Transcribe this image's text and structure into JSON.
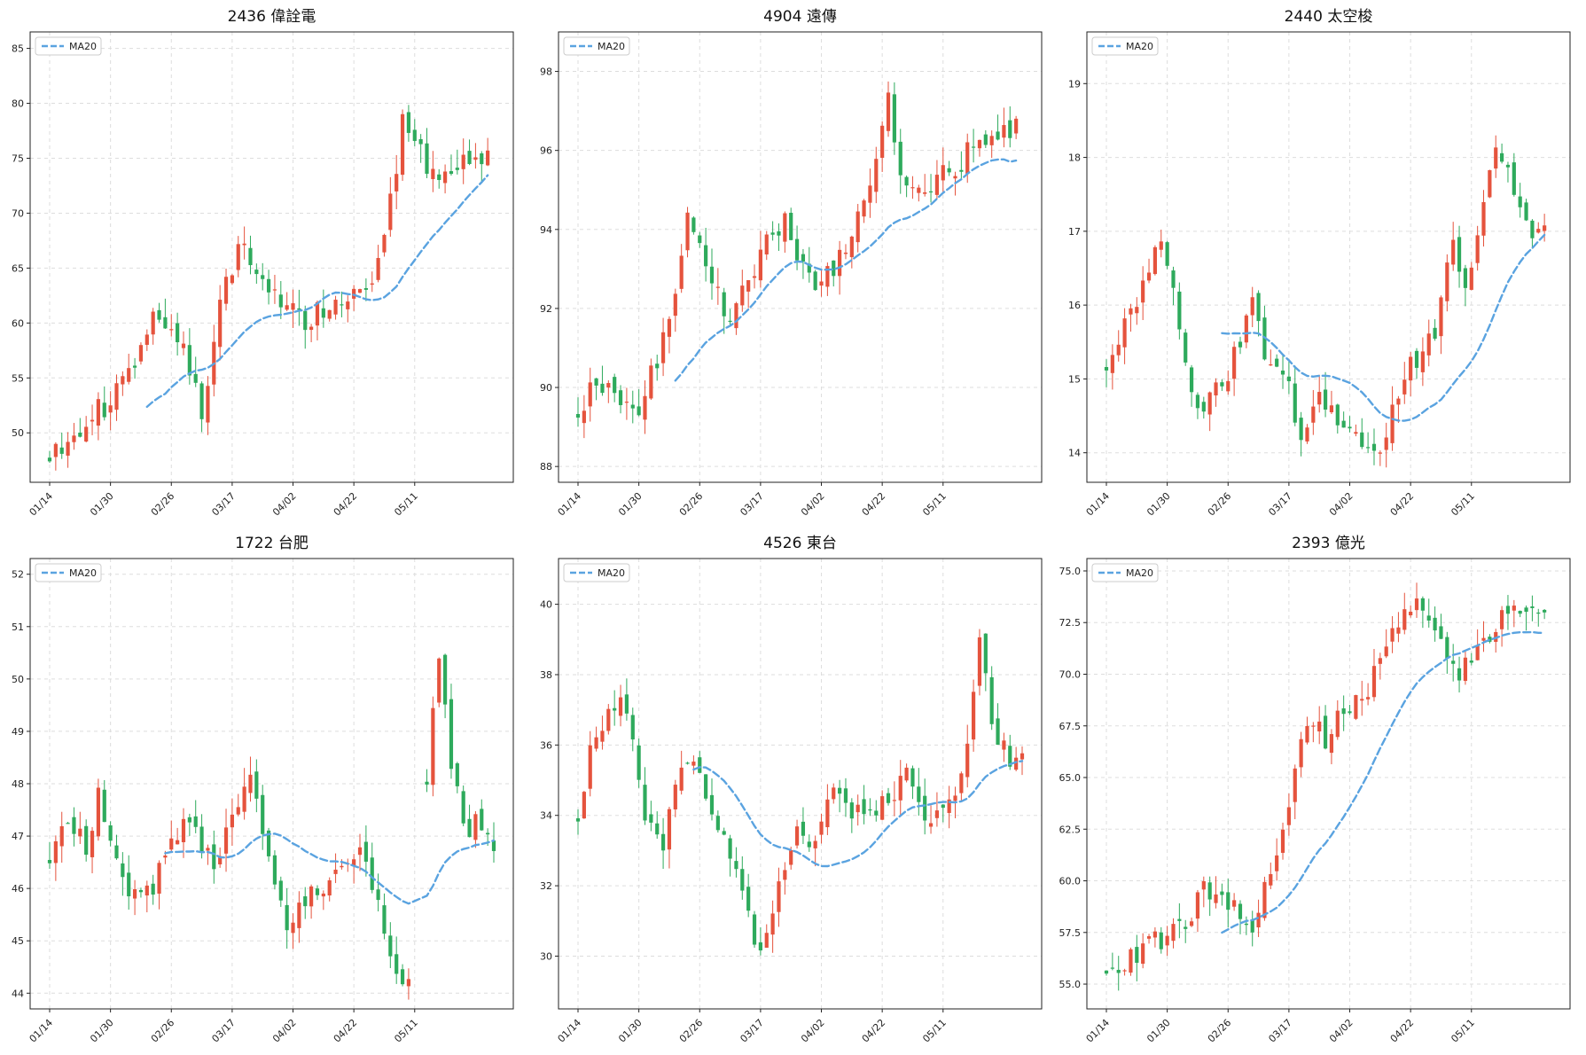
{
  "colors": {
    "up": "#e5533d",
    "down": "#2eaa5c",
    "ma": "#5aa3e0",
    "grid": "#dddddd"
  },
  "x_tick_labels": [
    "01/14",
    "01/30",
    "02/26",
    "03/17",
    "04/02",
    "04/22",
    "05/11"
  ],
  "chart_data": [
    {
      "type": "candlestick",
      "title": "2436 偉詮電",
      "legend": {
        "label": "MA20",
        "position": "top-left"
      },
      "grid": true,
      "ylim": [
        45.5,
        86.5
      ],
      "yticks": [
        50,
        55,
        60,
        65,
        70,
        75,
        80,
        85
      ],
      "ytick_labels": [
        "50",
        "55",
        "60",
        "65",
        "70",
        "75",
        "80",
        "85"
      ],
      "kp": [
        [
          0,
          48
        ],
        [
          6,
          51
        ],
        [
          10,
          53
        ],
        [
          14,
          57
        ],
        [
          16,
          60
        ],
        [
          18,
          61
        ],
        [
          20,
          60
        ],
        [
          23,
          56
        ],
        [
          25,
          51
        ],
        [
          28,
          62
        ],
        [
          31,
          67
        ],
        [
          35,
          64
        ],
        [
          38,
          62
        ],
        [
          42,
          60
        ],
        [
          46,
          62
        ],
        [
          50,
          62
        ],
        [
          53,
          63
        ],
        [
          55,
          68
        ],
        [
          58,
          78
        ],
        [
          61,
          76
        ],
        [
          64,
          72
        ],
        [
          67,
          74
        ],
        [
          70,
          75
        ],
        [
          72,
          75
        ]
      ],
      "ma_start": 16,
      "seed": 11
    },
    {
      "type": "candlestick",
      "title": "4904 遠傳",
      "legend": {
        "label": "MA20",
        "position": "top-left"
      },
      "grid": true,
      "ylim": [
        87.6,
        99.0
      ],
      "yticks": [
        88,
        90,
        92,
        94,
        96,
        98
      ],
      "ytick_labels": [
        "88",
        "90",
        "92",
        "94",
        "96",
        "98"
      ],
      "kp": [
        [
          0,
          89.4
        ],
        [
          3,
          90.3
        ],
        [
          6,
          89.8
        ],
        [
          10,
          89.4
        ],
        [
          13,
          90.8
        ],
        [
          16,
          92.3
        ],
        [
          18,
          94.7
        ],
        [
          21,
          93
        ],
        [
          25,
          91.5
        ],
        [
          30,
          93.5
        ],
        [
          34,
          94.2
        ],
        [
          38,
          92.6
        ],
        [
          42,
          93
        ],
        [
          46,
          94.4
        ],
        [
          48,
          95
        ],
        [
          51,
          97.5
        ],
        [
          53,
          95.5
        ],
        [
          57,
          95.2
        ],
        [
          62,
          95.6
        ],
        [
          66,
          96.2
        ],
        [
          72,
          96.5
        ]
      ],
      "ma_start": 16,
      "seed": 22
    },
    {
      "type": "candlestick",
      "title": "2440 太空梭",
      "legend": {
        "label": "MA20",
        "position": "top-left"
      },
      "grid": true,
      "ylim": [
        13.6,
        19.7
      ],
      "yticks": [
        14,
        15,
        16,
        17,
        18,
        19
      ],
      "ytick_labels": [
        "14",
        "15",
        "16",
        "17",
        "18",
        "19"
      ],
      "kp": [
        [
          0,
          15.2
        ],
        [
          3,
          15.7
        ],
        [
          6,
          16.2
        ],
        [
          8,
          16.9
        ],
        [
          11,
          16.4
        ],
        [
          13,
          15.2
        ],
        [
          15,
          14.6
        ],
        [
          18,
          14.8
        ],
        [
          21,
          15.3
        ],
        [
          24,
          16.0
        ],
        [
          26,
          15.3
        ],
        [
          29,
          15.1
        ],
        [
          32,
          14.3
        ],
        [
          35,
          14.9
        ],
        [
          38,
          14.3
        ],
        [
          41,
          14.2
        ],
        [
          45,
          14.1
        ],
        [
          48,
          14.9
        ],
        [
          51,
          15.3
        ],
        [
          54,
          15.6
        ],
        [
          57,
          17.0
        ],
        [
          59,
          16.2
        ],
        [
          62,
          17.5
        ],
        [
          64,
          18.3
        ],
        [
          67,
          17.6
        ],
        [
          70,
          17.0
        ],
        [
          72,
          17.2
        ]
      ],
      "ma_start": 19,
      "seed": 33
    },
    {
      "type": "candlestick",
      "title": "1722 台肥",
      "legend": {
        "label": "MA20",
        "position": "top-left"
      },
      "grid": true,
      "ylim": [
        43.7,
        52.3
      ],
      "yticks": [
        44,
        45,
        46,
        47,
        48,
        49,
        50,
        51,
        52
      ],
      "ytick_labels": [
        "44",
        "45",
        "46",
        "47",
        "48",
        "49",
        "50",
        "51",
        "52"
      ],
      "kp": [
        [
          0,
          46.6
        ],
        [
          3,
          47.2
        ],
        [
          6,
          46.8
        ],
        [
          8,
          47.8
        ],
        [
          11,
          46.5
        ],
        [
          14,
          45.8
        ],
        [
          17,
          46.0
        ],
        [
          20,
          47.0
        ],
        [
          24,
          47.3
        ],
        [
          27,
          46.2
        ],
        [
          30,
          47.5
        ],
        [
          33,
          48.0
        ],
        [
          36,
          46.8
        ],
        [
          39,
          45.3
        ],
        [
          42,
          45.8
        ],
        [
          45,
          46.0
        ],
        [
          48,
          46.5
        ],
        [
          51,
          46.7
        ],
        [
          54,
          45.7
        ],
        [
          57,
          44.5
        ],
        [
          59,
          44.2
        ]
      ],
      "kp2": [
        [
          62,
          48.0
        ],
        [
          64,
          50.5
        ],
        [
          66,
          48.5
        ],
        [
          68,
          47.2
        ],
        [
          71,
          47.2
        ],
        [
          73,
          46.8
        ]
      ],
      "ma_start": 19,
      "seed": 44
    },
    {
      "type": "candlestick",
      "title": "4526 東台",
      "legend": {
        "label": "MA20",
        "position": "top-left"
      },
      "grid": true,
      "ylim": [
        28.5,
        41.3
      ],
      "yticks": [
        30,
        32,
        34,
        36,
        38,
        40
      ],
      "ytick_labels": [
        "30",
        "32",
        "34",
        "36",
        "38",
        "40"
      ],
      "kp": [
        [
          0,
          34
        ],
        [
          2,
          36
        ],
        [
          5,
          37
        ],
        [
          8,
          37
        ],
        [
          11,
          34
        ],
        [
          14,
          33
        ],
        [
          16,
          35
        ],
        [
          19,
          35.5
        ],
        [
          22,
          34
        ],
        [
          25,
          33
        ],
        [
          27,
          32
        ],
        [
          30,
          30
        ],
        [
          33,
          32
        ],
        [
          36,
          34
        ],
        [
          39,
          33
        ],
        [
          42,
          35
        ],
        [
          45,
          34
        ],
        [
          48,
          34
        ],
        [
          51,
          34.5
        ],
        [
          54,
          35
        ],
        [
          57,
          34
        ],
        [
          60,
          34
        ],
        [
          63,
          35
        ],
        [
          66,
          39
        ],
        [
          68,
          36.5
        ],
        [
          71,
          35.5
        ],
        [
          73,
          35.8
        ]
      ],
      "ma_start": 19,
      "seed": 55
    },
    {
      "type": "candlestick",
      "title": "2393 億光",
      "legend": {
        "label": "MA20",
        "position": "top-left"
      },
      "grid": true,
      "ylim": [
        53.8,
        75.6
      ],
      "yticks": [
        55.0,
        57.5,
        60.0,
        62.5,
        65.0,
        67.5,
        70.0,
        72.5,
        75.0
      ],
      "ytick_labels": [
        "55.0",
        "57.5",
        "60.0",
        "62.5",
        "65.0",
        "67.5",
        "70.0",
        "72.5",
        "75.0"
      ],
      "kp": [
        [
          0,
          55.8
        ],
        [
          4,
          56.3
        ],
        [
          8,
          57
        ],
        [
          12,
          57.5
        ],
        [
          16,
          59.5
        ],
        [
          20,
          59
        ],
        [
          24,
          58
        ],
        [
          27,
          60
        ],
        [
          30,
          64
        ],
        [
          33,
          67.5
        ],
        [
          36,
          67
        ],
        [
          40,
          68.5
        ],
        [
          43,
          69.5
        ],
        [
          46,
          71.5
        ],
        [
          49,
          73.5
        ],
        [
          52,
          73
        ],
        [
          55,
          72
        ],
        [
          58,
          70
        ],
        [
          61,
          71.5
        ],
        [
          64,
          72.5
        ],
        [
          67,
          73
        ],
        [
          70,
          73.5
        ],
        [
          72,
          72.8
        ]
      ],
      "ma_start": 19,
      "seed": 66
    }
  ]
}
